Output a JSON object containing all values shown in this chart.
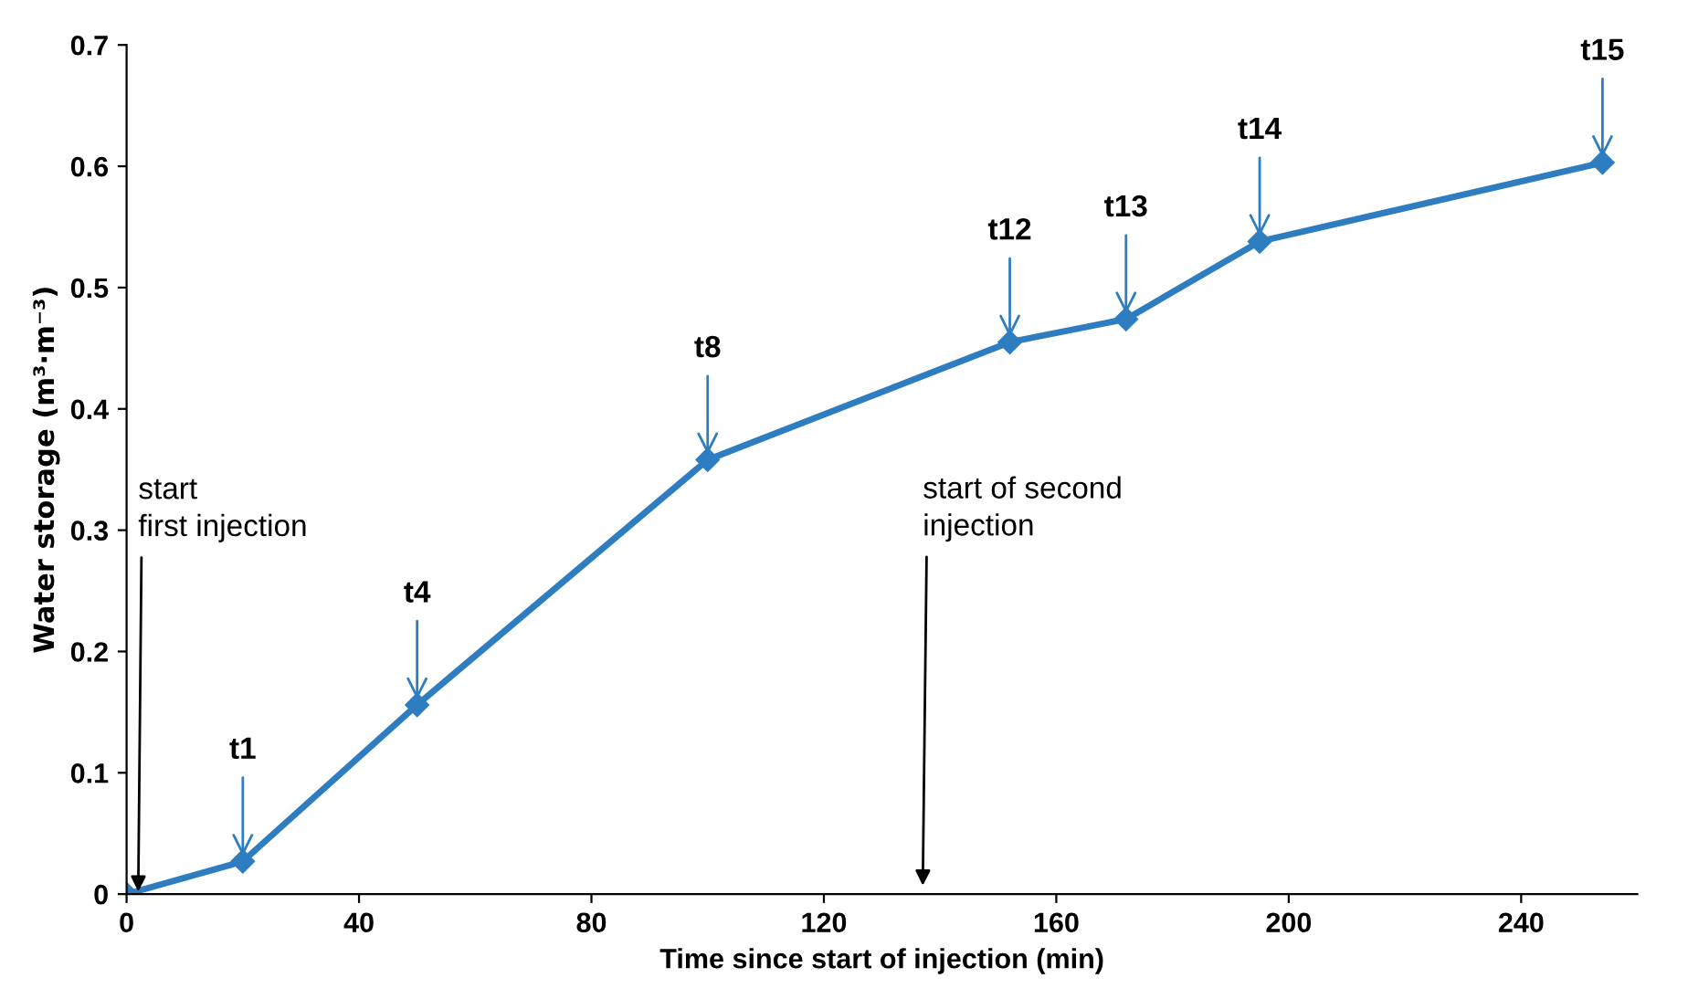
{
  "chart_data": {
    "type": "line",
    "xlabel": "Time since start of injection (min)",
    "ylabel": "Water storage (m³·m⁻³)",
    "series": [
      {
        "color": "#2e7dc1",
        "x": [
          0,
          20,
          50,
          100,
          152,
          172,
          195,
          254
        ],
        "values": [
          0,
          0.027,
          0.156,
          0.358,
          0.455,
          0.474,
          0.538,
          0.603
        ]
      }
    ],
    "xlim": [
      0,
      260
    ],
    "xticks": [
      0,
      40,
      80,
      120,
      160,
      200,
      240
    ],
    "ylim": [
      0,
      0.7
    ],
    "yticks": [
      0,
      0.1,
      0.2,
      0.3,
      0.4,
      0.5,
      0.6,
      0.7
    ],
    "marker": "diamond",
    "line_style": "solid",
    "grid": false,
    "legend": false,
    "annotations": [
      {
        "text": "t1",
        "x": 20,
        "y": 0.027
      },
      {
        "text": "t4",
        "x": 50,
        "y": 0.156
      },
      {
        "text": "t8",
        "x": 100,
        "y": 0.358
      },
      {
        "text": "t12",
        "x": 152,
        "y": 0.455
      },
      {
        "text": "t13",
        "x": 172,
        "y": 0.474
      },
      {
        "text": "t14",
        "x": 195,
        "y": 0.538
      },
      {
        "text": "t15",
        "x": 254,
        "y": 0.603
      },
      {
        "text": "start\nfirst injection",
        "x": 2,
        "y": 0
      },
      "start of second\ninjection"
    ]
  }
}
